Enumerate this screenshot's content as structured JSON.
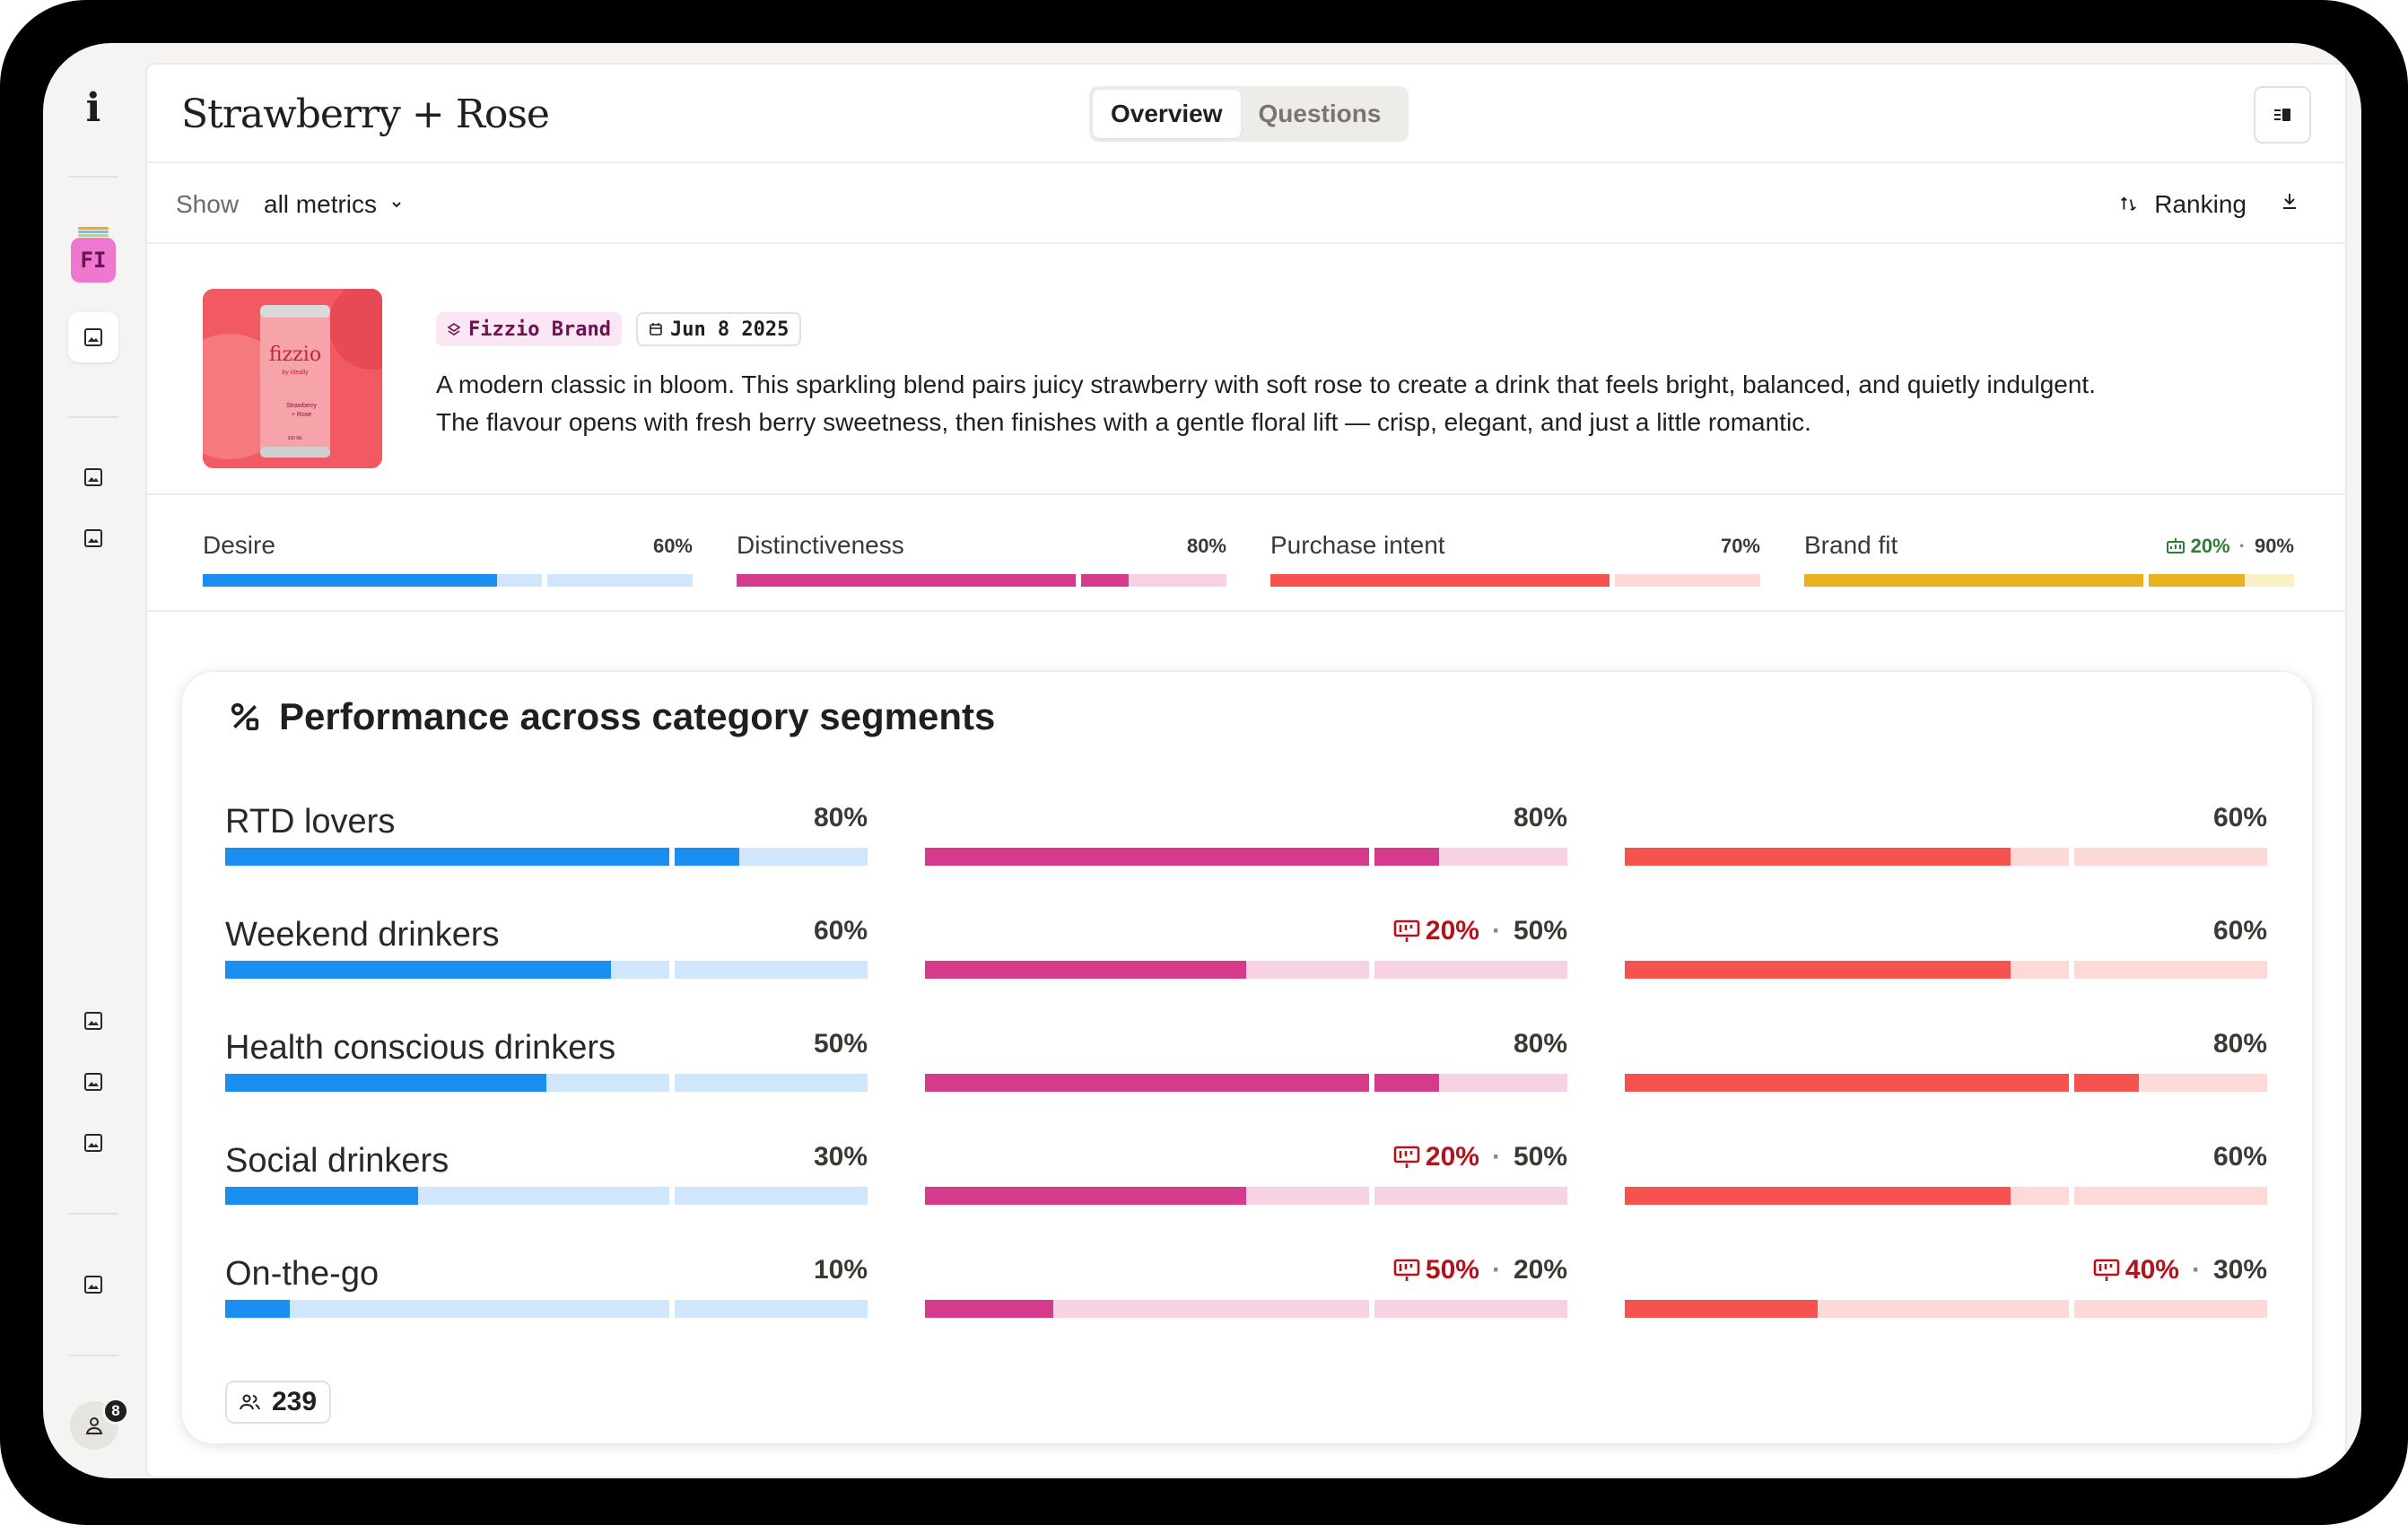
{
  "app": {
    "logo": "i",
    "workspace_initials": "FI",
    "user_badge_count": "8"
  },
  "header": {
    "title": "Strawberry + Rose",
    "tabs": [
      {
        "label": "Overview",
        "active": true
      },
      {
        "label": "Questions",
        "active": false
      }
    ]
  },
  "toolbar": {
    "show_label": "Show",
    "show_value": "all metrics",
    "ranking_label": "Ranking"
  },
  "product": {
    "image_text": {
      "brand": "fizzio",
      "sub": "by ideally",
      "name1": "Strawberry",
      "name2": "+ Rose",
      "volume": "330 ML"
    },
    "brand_chip": "Fizzio Brand",
    "date_chip": "Jun 8 2025",
    "description_line1": "A modern classic in bloom. This sparkling blend pairs juicy strawberry with soft rose to create a drink that feels bright, balanced, and quietly indulgent.",
    "description_line2": "The flavour opens with fresh berry sweetness, then finishes with a gentle floral lift — crisp, elegant, and just a little romantic."
  },
  "metrics": [
    {
      "label": "Desire",
      "value": 60,
      "value_text": "60%",
      "color": "#1b8ef2",
      "light": "#cfe6fd"
    },
    {
      "label": "Distinctiveness",
      "value": 80,
      "value_text": "80%",
      "color": "#d63a8a",
      "light": "#f7d2e5"
    },
    {
      "label": "Purchase intent",
      "value": 70,
      "value_text": "70%",
      "color": "#f6524f",
      "light": "#fdd9d8"
    },
    {
      "label": "Brand fit",
      "value": 90,
      "value_text": "90%",
      "delta_text": "20%",
      "delta_dir": "up",
      "color": "#e8b21f",
      "light": "#fbefc6"
    }
  ],
  "segments_card": {
    "title": "Performance across category segments",
    "respondents": "239",
    "colors": [
      {
        "fill": "#1b8ef2",
        "light": "#cfe6fd"
      },
      {
        "fill": "#d63a8a",
        "light": "#f7d2e5"
      },
      {
        "fill": "#f6524f",
        "light": "#fdd9d8"
      }
    ],
    "rows": [
      {
        "label": "RTD lovers",
        "cells": [
          {
            "value": 80,
            "text": "80%"
          },
          {
            "value": 80,
            "text": "80%"
          },
          {
            "value": 60,
            "text": "60%"
          }
        ]
      },
      {
        "label": "Weekend drinkers",
        "cells": [
          {
            "value": 60,
            "text": "60%"
          },
          {
            "value": 50,
            "text": "50%",
            "drop": "20%"
          },
          {
            "value": 60,
            "text": "60%"
          }
        ]
      },
      {
        "label": "Health conscious drinkers",
        "cells": [
          {
            "value": 50,
            "text": "50%"
          },
          {
            "value": 80,
            "text": "80%"
          },
          {
            "value": 80,
            "text": "80%"
          }
        ]
      },
      {
        "label": "Social drinkers",
        "cells": [
          {
            "value": 30,
            "text": "30%"
          },
          {
            "value": 50,
            "text": "50%",
            "drop": "20%"
          },
          {
            "value": 60,
            "text": "60%"
          }
        ]
      },
      {
        "label": "On-the-go",
        "cells": [
          {
            "value": 10,
            "text": "10%"
          },
          {
            "value": 20,
            "text": "20%",
            "drop": "50%"
          },
          {
            "value": 30,
            "text": "30%",
            "drop": "40%"
          }
        ]
      }
    ]
  }
}
